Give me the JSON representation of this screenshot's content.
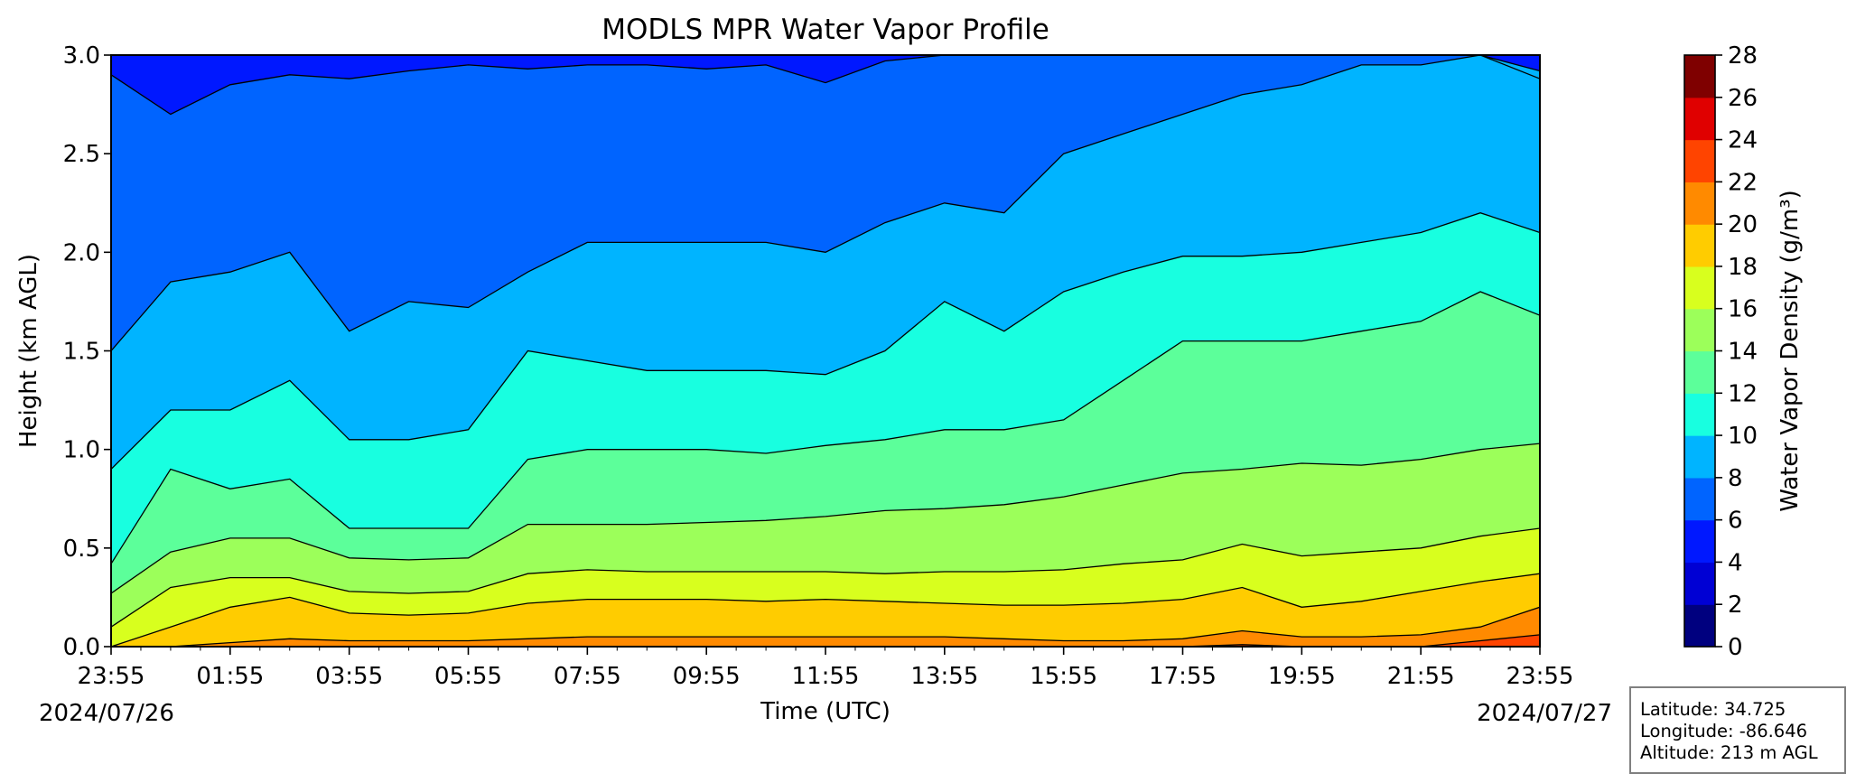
{
  "chart_data": {
    "type": "heatmap",
    "title": "MODLS MPR Water Vapor Profile",
    "xlabel": "Time (UTC)",
    "ylabel": "Height (km AGL)",
    "x_tick_labels": [
      "23:55",
      "01:55",
      "03:55",
      "05:55",
      "07:55",
      "09:55",
      "11:55",
      "13:55",
      "15:55",
      "17:55",
      "19:55",
      "21:55",
      "23:55"
    ],
    "x_hours_from_start": [
      0,
      2,
      4,
      6,
      8,
      10,
      12,
      14,
      16,
      18,
      20,
      22,
      24
    ],
    "start_date_label": "2024/07/26",
    "end_date_label": "2024/07/27",
    "ylim": [
      0,
      3.0
    ],
    "y_ticks": [
      0.0,
      0.5,
      1.0,
      1.5,
      2.0,
      2.5,
      3.0
    ],
    "y_tick_labels": [
      "0.0",
      "0.5",
      "1.0",
      "1.5",
      "2.0",
      "2.5",
      "3.0"
    ],
    "colorbar": {
      "label": "Water Vapor Density (g/m³)",
      "levels": [
        0,
        2,
        4,
        6,
        8,
        10,
        12,
        14,
        16,
        18,
        20,
        22,
        24,
        26,
        28
      ],
      "level_labels": [
        "0",
        "2",
        "4",
        "6",
        "8",
        "10",
        "12",
        "14",
        "16",
        "18",
        "20",
        "22",
        "24",
        "26",
        "28"
      ],
      "colors": [
        "#00007f",
        "#0000d4",
        "#0018ff",
        "#0064ff",
        "#00b4ff",
        "#18ffe0",
        "#5cff9a",
        "#9cff5a",
        "#d8ff1e",
        "#ffcc00",
        "#ff8a00",
        "#ff4400",
        "#e00000",
        "#7f0000"
      ]
    },
    "contour_boundaries_km": [
      {
        "level": 6,
        "hours": [
          0,
          1,
          2,
          3,
          4,
          5,
          6,
          7,
          8,
          9,
          10,
          11,
          12,
          13,
          14,
          15,
          16,
          17,
          18,
          19,
          20,
          21,
          22,
          23,
          24
        ],
        "heights": [
          2.9,
          2.7,
          2.85,
          2.9,
          2.88,
          2.92,
          2.95,
          2.93,
          2.95,
          2.95,
          2.93,
          2.95,
          2.86,
          2.97,
          3.0,
          3.0,
          3.0,
          3.0,
          3.0,
          3.0,
          3.0,
          3.0,
          3.0,
          3.0,
          2.88
        ]
      },
      {
        "level": 8,
        "hours": [
          0,
          1,
          2,
          3,
          4,
          5,
          6,
          7,
          8,
          9,
          10,
          11,
          12,
          13,
          14,
          15,
          16,
          17,
          18,
          19,
          20,
          21,
          22,
          23,
          24
        ],
        "heights": [
          1.5,
          1.85,
          1.9,
          2.0,
          1.6,
          1.75,
          1.72,
          1.9,
          2.05,
          2.05,
          2.05,
          2.05,
          2.0,
          2.15,
          2.25,
          2.2,
          2.5,
          2.6,
          2.7,
          2.8,
          2.85,
          2.95,
          2.95,
          3.0,
          2.92
        ]
      },
      {
        "level": 10,
        "hours": [
          0,
          1,
          2,
          3,
          4,
          5,
          6,
          7,
          8,
          9,
          10,
          11,
          12,
          13,
          14,
          15,
          16,
          17,
          18,
          19,
          20,
          21,
          22,
          23,
          24
        ],
        "heights": [
          0.9,
          1.2,
          1.2,
          1.35,
          1.05,
          1.05,
          1.1,
          1.5,
          1.45,
          1.4,
          1.4,
          1.4,
          1.38,
          1.5,
          1.75,
          1.6,
          1.8,
          1.9,
          1.98,
          1.98,
          2.0,
          2.05,
          2.1,
          2.2,
          2.1
        ]
      },
      {
        "level": 12,
        "hours": [
          0,
          1,
          2,
          3,
          4,
          5,
          6,
          7,
          8,
          9,
          10,
          11,
          12,
          13,
          14,
          15,
          16,
          17,
          18,
          19,
          20,
          21,
          22,
          23,
          24
        ],
        "heights": [
          0.42,
          0.9,
          0.8,
          0.85,
          0.6,
          0.6,
          0.6,
          0.95,
          1.0,
          1.0,
          1.0,
          0.98,
          1.02,
          1.05,
          1.1,
          1.1,
          1.15,
          1.35,
          1.55,
          1.55,
          1.55,
          1.6,
          1.65,
          1.8,
          1.68
        ]
      },
      {
        "level": 14,
        "hours": [
          0,
          1,
          2,
          3,
          4,
          5,
          6,
          7,
          8,
          9,
          10,
          11,
          12,
          13,
          14,
          15,
          16,
          17,
          18,
          19,
          20,
          21,
          22,
          23,
          24
        ],
        "heights": [
          0.27,
          0.48,
          0.55,
          0.55,
          0.45,
          0.44,
          0.45,
          0.62,
          0.62,
          0.62,
          0.63,
          0.64,
          0.66,
          0.69,
          0.7,
          0.72,
          0.76,
          0.82,
          0.88,
          0.9,
          0.93,
          0.92,
          0.95,
          1.0,
          1.03
        ]
      },
      {
        "level": 16,
        "hours": [
          0,
          1,
          2,
          3,
          4,
          5,
          6,
          7,
          8,
          9,
          10,
          11,
          12,
          13,
          14,
          15,
          16,
          17,
          18,
          19,
          20,
          21,
          22,
          23,
          24
        ],
        "heights": [
          0.1,
          0.3,
          0.35,
          0.35,
          0.28,
          0.27,
          0.28,
          0.37,
          0.39,
          0.38,
          0.38,
          0.38,
          0.38,
          0.37,
          0.38,
          0.38,
          0.39,
          0.42,
          0.44,
          0.52,
          0.46,
          0.48,
          0.5,
          0.56,
          0.6
        ]
      },
      {
        "level": 18,
        "hours": [
          0,
          1,
          2,
          3,
          4,
          5,
          6,
          7,
          8,
          9,
          10,
          11,
          12,
          13,
          14,
          15,
          16,
          17,
          18,
          19,
          20,
          21,
          22,
          23,
          24
        ],
        "heights": [
          0.0,
          0.1,
          0.2,
          0.25,
          0.17,
          0.16,
          0.17,
          0.22,
          0.24,
          0.24,
          0.24,
          0.23,
          0.24,
          0.23,
          0.22,
          0.21,
          0.21,
          0.22,
          0.24,
          0.3,
          0.2,
          0.23,
          0.28,
          0.33,
          0.37
        ]
      },
      {
        "level": 20,
        "hours": [
          0,
          1,
          2,
          3,
          4,
          5,
          6,
          7,
          8,
          9,
          10,
          11,
          12,
          13,
          14,
          15,
          16,
          17,
          18,
          19,
          20,
          21,
          22,
          23,
          24
        ],
        "heights": [
          0.0,
          0.0,
          0.02,
          0.04,
          0.03,
          0.03,
          0.03,
          0.04,
          0.05,
          0.05,
          0.05,
          0.05,
          0.05,
          0.05,
          0.05,
          0.04,
          0.03,
          0.03,
          0.04,
          0.08,
          0.05,
          0.05,
          0.06,
          0.1,
          0.2
        ]
      },
      {
        "level": 22,
        "hours": [
          0,
          1,
          2,
          3,
          4,
          5,
          6,
          7,
          8,
          9,
          10,
          11,
          12,
          13,
          14,
          15,
          16,
          17,
          18,
          19,
          20,
          21,
          22,
          23,
          24
        ],
        "heights": [
          0,
          0,
          0,
          0,
          0,
          0,
          0,
          0,
          0,
          0,
          0,
          0,
          0,
          0,
          0,
          0,
          0,
          0,
          0,
          0.01,
          0,
          0,
          0,
          0.03,
          0.06
        ]
      }
    ],
    "legend_placement": "colorbar-right",
    "grid": false
  },
  "station": {
    "latitude": "Latitude: 34.725",
    "longitude": "Longitude: -86.646",
    "altitude": "Altitude: 213 m AGL"
  }
}
